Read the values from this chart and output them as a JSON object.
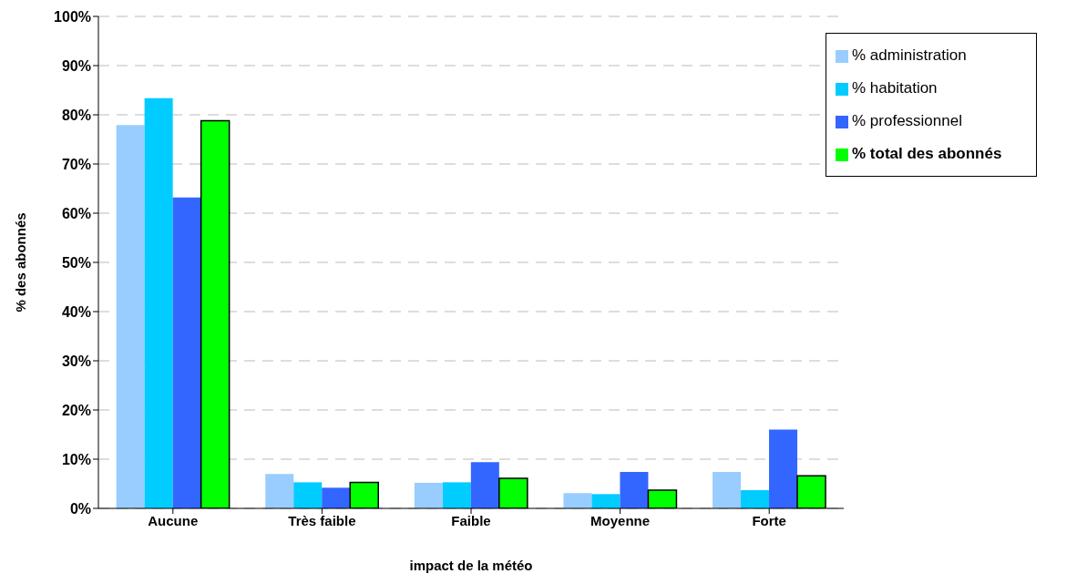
{
  "chart_data": {
    "type": "bar",
    "xlabel": "impact de la météo",
    "ylabel": "% des abonnés",
    "categories": [
      "Aucune",
      "Très faible",
      "Faible",
      "Moyenne",
      "Forte"
    ],
    "series": [
      {
        "name": "% administration",
        "color": "#99ccff",
        "values": [
          77.9,
          7.0,
          5.2,
          3.1,
          7.4
        ]
      },
      {
        "name": "% habitation",
        "color": "#00ccff",
        "values": [
          83.4,
          5.3,
          5.3,
          2.9,
          3.7
        ]
      },
      {
        "name": "% professionnel",
        "color": "#3366ff",
        "values": [
          63.2,
          4.2,
          9.4,
          7.4,
          16
        ]
      },
      {
        "name": "% total des abonnés",
        "color": "#00ff00",
        "values": [
          78.8,
          5.3,
          6.1,
          3.7,
          6.6
        ]
      }
    ],
    "ylim": [
      0,
      100
    ],
    "yticks": [
      {
        "value": 0,
        "label": "0%"
      },
      {
        "value": 10,
        "label": "10%"
      },
      {
        "value": 20,
        "label": "20%"
      },
      {
        "value": 30,
        "label": "30%"
      },
      {
        "value": 40,
        "label": "40%"
      },
      {
        "value": 50,
        "label": "50%"
      },
      {
        "value": 60,
        "label": "60%"
      },
      {
        "value": 70,
        "label": "70%"
      },
      {
        "value": 80,
        "label": "80%"
      },
      {
        "value": 90,
        "label": "90%"
      },
      {
        "value": 100,
        "label": "100%"
      }
    ],
    "grid": "y",
    "legend": "top right"
  }
}
